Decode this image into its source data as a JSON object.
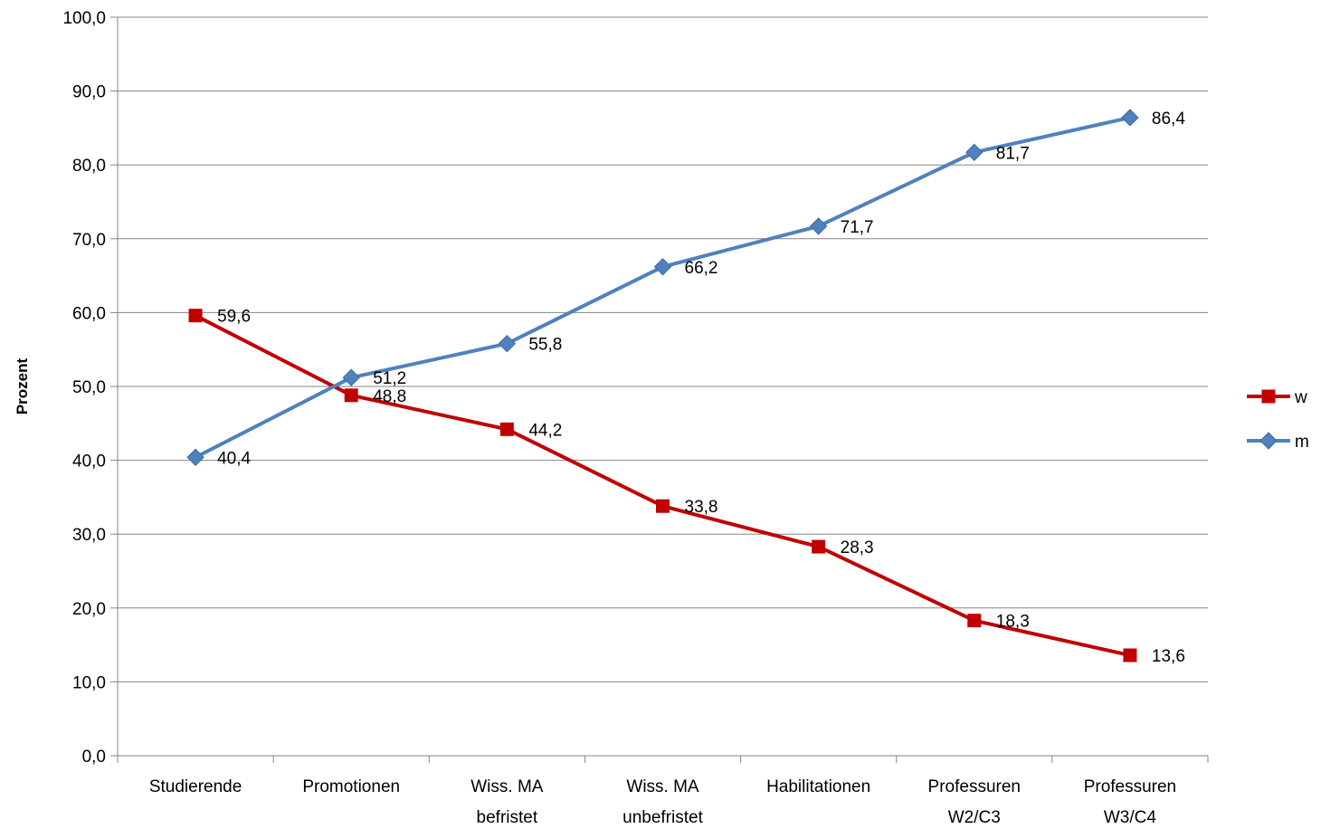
{
  "chart_data": {
    "type": "line",
    "title": "",
    "xlabel": "",
    "ylabel": "Prozent",
    "ylim": [
      0,
      100
    ],
    "ytick_step": 10,
    "ytick_labels": [
      "0,0",
      "10,0",
      "20,0",
      "30,0",
      "40,0",
      "50,0",
      "60,0",
      "70,0",
      "80,0",
      "90,0",
      "100,0"
    ],
    "grid": true,
    "legend_position": "right",
    "categories": [
      [
        "Studierende"
      ],
      [
        "Promotionen"
      ],
      [
        "Wiss. MA",
        "befristet"
      ],
      [
        "Wiss. MA",
        "unbefristet"
      ],
      [
        "Habilitationen"
      ],
      [
        "Professuren",
        "W2/C3"
      ],
      [
        "Professuren",
        "W3/C4"
      ]
    ],
    "series": [
      {
        "name": "w",
        "color": "#C00000",
        "marker": "square",
        "values": [
          59.6,
          48.8,
          44.2,
          33.8,
          28.3,
          18.3,
          13.6
        ],
        "labels": [
          "59,6",
          "48,8",
          "44,2",
          "33,8",
          "28,3",
          "18,3",
          "13,6"
        ]
      },
      {
        "name": "m",
        "color": "#4F81BD",
        "marker": "diamond",
        "values": [
          40.4,
          51.2,
          55.8,
          66.2,
          71.7,
          81.7,
          86.4
        ],
        "labels": [
          "40,4",
          "51,2",
          "55,8",
          "66,2",
          "71,7",
          "81,7",
          "86,4"
        ]
      }
    ]
  }
}
